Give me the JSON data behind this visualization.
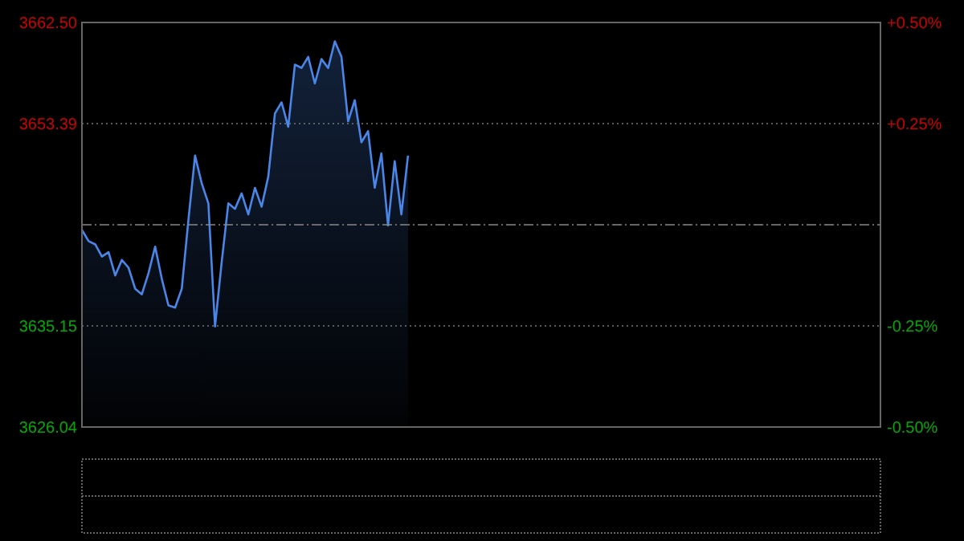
{
  "chart_data": {
    "type": "area",
    "categories": [
      null,
      null,
      null,
      null,
      null,
      null,
      null,
      null,
      null,
      null,
      null,
      null,
      null,
      null,
      null,
      null,
      null,
      null,
      null,
      null,
      null,
      null,
      null,
      null,
      null,
      null,
      null,
      null,
      null,
      null,
      null,
      null,
      null,
      null,
      null,
      null,
      null,
      null,
      null,
      null,
      null,
      null,
      null,
      null,
      null,
      null,
      null,
      null,
      null,
      null,
      null,
      null,
      null,
      null,
      null,
      null,
      null,
      null,
      null,
      null,
      null,
      null,
      null,
      null,
      null,
      null,
      null,
      null,
      null,
      null,
      null,
      null,
      null,
      null,
      null,
      null,
      null,
      null,
      null,
      null,
      null,
      null,
      null,
      null,
      null,
      null,
      null,
      null,
      null,
      null,
      null,
      null,
      null,
      null,
      null,
      null,
      null,
      null,
      null,
      null,
      null,
      null,
      null,
      null,
      null,
      null,
      null,
      null,
      null,
      null,
      null,
      null,
      null,
      null,
      null,
      null,
      null,
      null,
      null,
      null,
      null
    ],
    "series": [
      {
        "color": "#4a86e8",
        "values": [
          3643.8,
          3642.8,
          3642.5,
          3641.4,
          3641.8,
          3639.7,
          3641.1,
          3640.4,
          3638.5,
          3638.0,
          3639.9,
          3642.3,
          3639.4,
          3637.0,
          3636.8,
          3638.5,
          3644.7,
          3650.5,
          3648.0,
          3646.2,
          3635.1,
          3640.9,
          3646.2,
          3645.7,
          3647.1,
          3645.2,
          3647.6,
          3645.9,
          3648.6,
          3654.3,
          3655.3,
          3653.1,
          3658.7,
          3658.4,
          3659.4,
          3657.0,
          3659.2,
          3658.4,
          3660.8,
          3659.4,
          3653.6,
          3655.5,
          3651.7,
          3652.7,
          3647.6,
          3650.7,
          3644.2,
          3650.0,
          3645.2,
          3650.5,
          null,
          null,
          null,
          null,
          null,
          null,
          null,
          null,
          null,
          null,
          null,
          null,
          null,
          null,
          null,
          null,
          null,
          null,
          null,
          null,
          null,
          null,
          null,
          null,
          null,
          null,
          null,
          null,
          null,
          null,
          null,
          null,
          null,
          null,
          null,
          null,
          null,
          null,
          null,
          null,
          null,
          null,
          null,
          null,
          null,
          null,
          null,
          null,
          null,
          null,
          null,
          null,
          null,
          null,
          null,
          null,
          null,
          null,
          null,
          null,
          null,
          null,
          null,
          null,
          null,
          null,
          null,
          null,
          null,
          null,
          null
        ]
      }
    ],
    "ylim": [
      3626.04,
      3662.5
    ],
    "yticks": [
      3626.04,
      3635.15,
      3653.39,
      {
        "value": 3662.5,
        "label": "3662.50"
      }
    ],
    "y2lim": [
      -0.5,
      0.5
    ],
    "y2ticks": [
      {
        "value": -0.5,
        "label": "-0.50%"
      },
      {
        "value": -0.25,
        "label": "-0.25%"
      },
      {
        "value": 0.25,
        "label": "+0.25%"
      },
      {
        "value": 0.5,
        "label": "+0.50%"
      }
    ],
    "ref_lines": [
      {
        "axis": "y",
        "value": 3644.27,
        "line_style": "dashed"
      }
    ],
    "grid": "y",
    "tick_labels": "y"
  }
}
